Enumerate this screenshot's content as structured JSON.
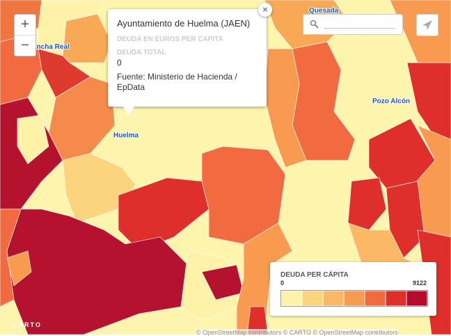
{
  "map": {
    "places": [
      "Quesada",
      "ancha Real",
      "Pozo Alcón",
      "Huelma"
    ],
    "zoom": {
      "in": "+",
      "out": "−"
    },
    "popup": {
      "title": "Ayuntamiento de Huelma (JAEN)",
      "field1": "DEUDA EN EUROS PER CAPITA",
      "field2": "DEUDA TOTAL",
      "value2": "0",
      "source": "Fuente: Ministerio de Hacienda / EpData",
      "close": "×"
    },
    "legend": {
      "title": "DEUDA PER CÁPITA",
      "min": 0,
      "max": 9122,
      "colors": [
        "#fdf2a8",
        "#fcd47e",
        "#fbb865",
        "#f89a50",
        "#f26a3f",
        "#de2f2a",
        "#b50c2e"
      ]
    },
    "logo": "CARTO",
    "attribution": "© OpenStreetMap contributors © CARTO © OpenStreetMap contributors"
  }
}
